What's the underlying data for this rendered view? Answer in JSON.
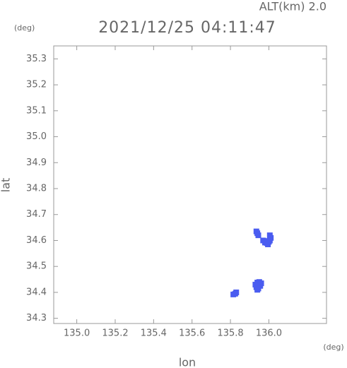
{
  "chart_data": {
    "type": "scatter",
    "title": "2021/12/25 04:11:47",
    "subtitle": "ALT(km) 2.0",
    "y_unit": "(deg)",
    "x_unit": "(deg)",
    "x_label": "lon",
    "y_label": "lat",
    "color": "#4a5cf0",
    "x": [
      135.935,
      135.94,
      135.945,
      135.97,
      135.98,
      135.99,
      136.0,
      136.005,
      136.01,
      136.005,
      135.995,
      135.985,
      135.93,
      135.94,
      135.95,
      135.96,
      135.955,
      135.945,
      135.935,
      135.95,
      135.94,
      135.815,
      135.825,
      135.83
    ],
    "values": [
      34.635,
      34.628,
      34.62,
      34.6,
      34.592,
      34.59,
      34.595,
      34.6,
      34.61,
      34.62,
      34.585,
      34.598,
      34.43,
      34.438,
      34.44,
      34.435,
      34.425,
      34.415,
      34.42,
      34.43,
      34.41,
      34.392,
      34.395,
      34.4
    ],
    "xlim": [
      134.88,
      136.3
    ],
    "ylim": [
      34.28,
      35.35
    ],
    "xticks": [
      {
        "value": 135,
        "label": "135.0"
      },
      135.2,
      135.4,
      135.6,
      135.8,
      {
        "value": 136,
        "label": "136.0"
      }
    ],
    "yticks": [
      34.3,
      34.4,
      34.5,
      34.6,
      34.7,
      34.8,
      34.9,
      {
        "value": 35,
        "label": "35.0"
      },
      35.1,
      35.2,
      35.3
    ]
  }
}
